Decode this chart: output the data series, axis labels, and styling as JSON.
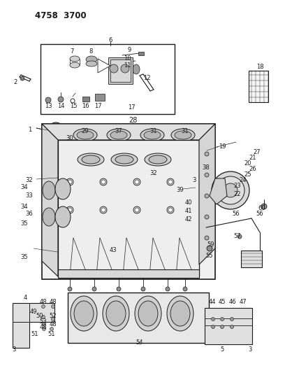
{
  "bg_color": "#ffffff",
  "line_color": "#1a1a1a",
  "fig_width": 4.08,
  "fig_height": 5.33,
  "dpi": 100,
  "header": "4758  3700",
  "lw": 0.65,
  "fs": 6.0
}
